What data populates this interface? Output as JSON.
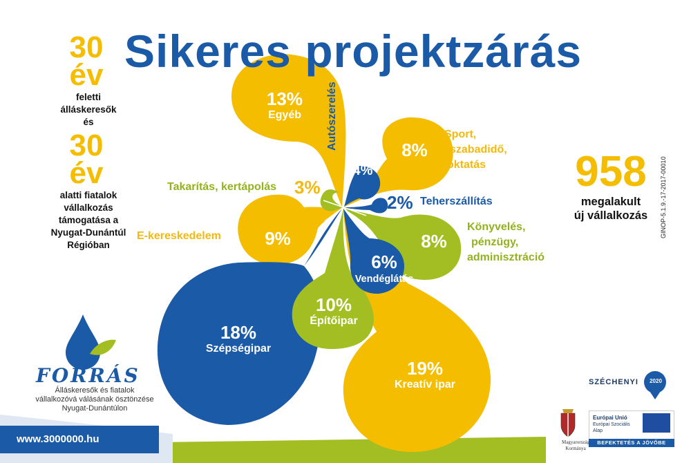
{
  "title": "Sikeres projektzárás",
  "left_panel": {
    "years1": "30",
    "unit1": "év",
    "text1_lines": [
      "feletti",
      "álláskeresők",
      "és"
    ],
    "years2": "30",
    "unit2": "év",
    "text2_lines": [
      "alatti fiatalok",
      "vállalkozás",
      "támogatása a",
      "Nyugat-Dunántúl",
      "Régióban"
    ]
  },
  "petals": [
    {
      "pct": "13%",
      "label": "Egyéb"
    },
    {
      "pct": "4%",
      "label": "Autószerelés"
    },
    {
      "pct": "8%",
      "label": "Sport, szabadidő, oktatás"
    },
    {
      "pct": "2%",
      "label": "Teherszállítás"
    },
    {
      "pct": "8%",
      "label": "Könyvelés, pénzügy, adminisztráció"
    },
    {
      "pct": "6%",
      "label": "Vendéglátás"
    },
    {
      "pct": "19%",
      "label": "Kreatív ipar"
    },
    {
      "pct": "10%",
      "label": "Építőipar"
    },
    {
      "pct": "18%",
      "label": "Szépségipar"
    },
    {
      "pct": "9%",
      "label": "E-kereskedelem"
    },
    {
      "pct": "3%",
      "label": "Takarítás, kertápolás"
    }
  ],
  "sport_lines": [
    "Sport,",
    "szabadidő,",
    "oktatás"
  ],
  "konyv_lines": [
    "Könyvelés,",
    "pénzügy,",
    "adminisztráció"
  ],
  "big_stat": {
    "number": "958",
    "line1": "megalakult",
    "line2": "új vállalkozás"
  },
  "ginop": "GINOP-5.1.9.-17-2017-00010",
  "logo": {
    "name": "FORRÁS",
    "subtitle_lines": [
      "Álláskeresők és fiatalok",
      "vállalkozóvá válásának ösztönzése",
      "Nyugat-Dunántúlon"
    ]
  },
  "website": "www.3000000.hu",
  "szechenyi": {
    "name": "SZÉCHENYI",
    "year": "2020"
  },
  "eu": {
    "line1": "Európai Unió",
    "line2": "Európai Szociális",
    "line3": "Alap",
    "slogan": "BEFEKTETÉS A JÖVŐBE"
  },
  "government": {
    "line1": "Magyarország",
    "line2": "Kormánya"
  },
  "colors": {
    "yellow": "#f5bd00",
    "blue": "#1a5aa6",
    "green": "#a3be22",
    "text": "#111111"
  }
}
